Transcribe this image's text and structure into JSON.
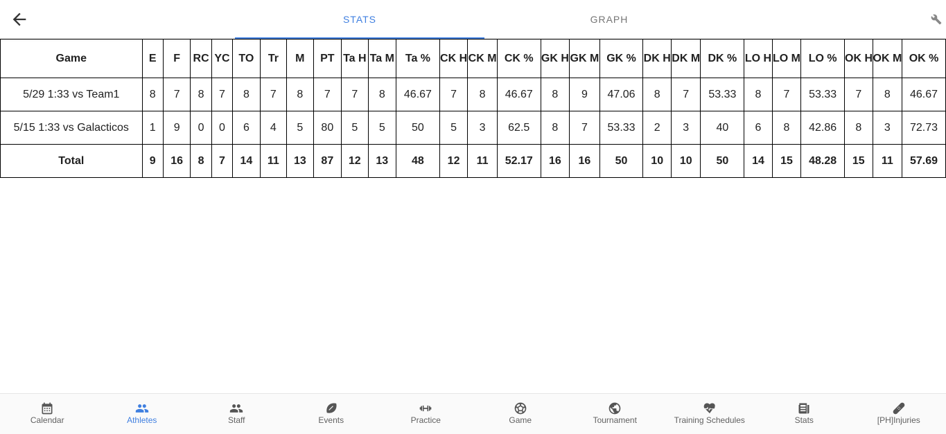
{
  "tabs": [
    {
      "label": "STATS",
      "active": true
    },
    {
      "label": "GRAPH",
      "active": false
    }
  ],
  "icons": {
    "back": "arrow-left-icon",
    "settings": "wrench-icon"
  },
  "colors": {
    "accent": "#3f7fe0",
    "text": "#212121",
    "nav_text": "#616161"
  },
  "table": {
    "headers": [
      "Game",
      "E",
      "F",
      "RC",
      "YC",
      "TO",
      "Tr",
      "M",
      "PT",
      "Ta H",
      "Ta M",
      "Ta %",
      "CK H",
      "CK M",
      "CK %",
      "GK H",
      "GK M",
      "GK %",
      "DK H",
      "DK M",
      "DK %",
      "LO H",
      "LO M",
      "LO %",
      "OK H",
      "OK M",
      "OK %"
    ],
    "rows": [
      [
        "5/29 1:33 vs Team1",
        "8",
        "7",
        "8",
        "7",
        "8",
        "7",
        "8",
        "7",
        "7",
        "8",
        "46.67",
        "7",
        "8",
        "46.67",
        "8",
        "9",
        "47.06",
        "8",
        "7",
        "53.33",
        "8",
        "7",
        "53.33",
        "7",
        "8",
        "46.67"
      ],
      [
        "5/15 1:33 vs Galacticos",
        "1",
        "9",
        "0",
        "0",
        "6",
        "4",
        "5",
        "80",
        "5",
        "5",
        "50",
        "5",
        "3",
        "62.5",
        "8",
        "7",
        "53.33",
        "2",
        "3",
        "40",
        "6",
        "8",
        "42.86",
        "8",
        "3",
        "72.73"
      ]
    ],
    "total": [
      "Total",
      "9",
      "16",
      "8",
      "7",
      "14",
      "11",
      "13",
      "87",
      "12",
      "13",
      "48",
      "12",
      "11",
      "52.17",
      "16",
      "16",
      "50",
      "10",
      "10",
      "50",
      "14",
      "15",
      "48.28",
      "15",
      "11",
      "57.69"
    ]
  },
  "nav": [
    {
      "label": "Calendar",
      "icon": "calendar-icon",
      "active": false
    },
    {
      "label": "Athletes",
      "icon": "people-icon",
      "active": true
    },
    {
      "label": "Staff",
      "icon": "staff-icon",
      "active": false
    },
    {
      "label": "Events",
      "icon": "football-icon",
      "active": false
    },
    {
      "label": "Practice",
      "icon": "dumbbell-icon",
      "active": false
    },
    {
      "label": "Game",
      "icon": "ball-icon",
      "active": false
    },
    {
      "label": "Tournament",
      "icon": "globe-icon",
      "active": false
    },
    {
      "label": "Training Schedules",
      "icon": "heartbeat-icon",
      "active": false
    },
    {
      "label": "Stats",
      "icon": "newspaper-icon",
      "active": false
    },
    {
      "label": "[PH]Injuries",
      "icon": "bandage-icon",
      "active": false
    }
  ]
}
